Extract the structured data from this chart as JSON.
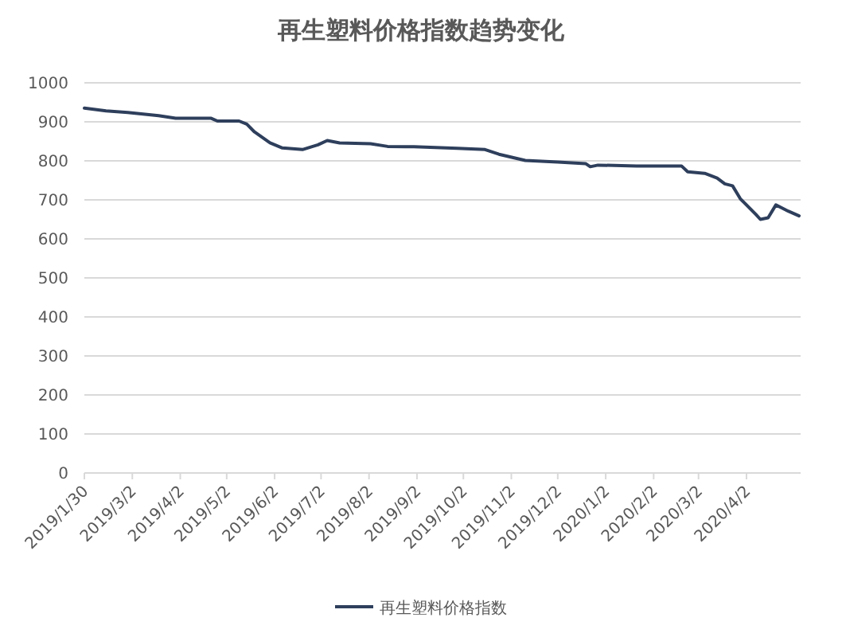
{
  "chart_data": {
    "type": "line",
    "title": "再生塑料价格指数趋势变化",
    "x": [
      "2019-01-30",
      "2019-02-13",
      "2019-02-27",
      "2019-03-19",
      "2019-03-30",
      "2019-04-22",
      "2019-04-26",
      "2019-05-10",
      "2019-05-15",
      "2019-05-20",
      "2019-05-30",
      "2019-06-07",
      "2019-06-20",
      "2019-06-30",
      "2019-07-06",
      "2019-07-14",
      "2019-08-03",
      "2019-08-14",
      "2019-08-31",
      "2019-09-28",
      "2019-10-16",
      "2019-10-25",
      "2019-11-11",
      "2019-12-02",
      "2019-12-20",
      "2019-12-23",
      "2019-12-28",
      "2020-01-22",
      "2020-02-20",
      "2020-02-24",
      "2020-03-06",
      "2020-03-14",
      "2020-03-19",
      "2020-03-24",
      "2020-03-29",
      "2020-04-08",
      "2020-04-11",
      "2020-04-16",
      "2020-04-21",
      "2020-04-25",
      "2020-04-29",
      "2020-05-06"
    ],
    "series": [
      {
        "name": "再生塑料价格指数",
        "color": "#2e3f5c",
        "values": [
          935,
          928,
          924,
          916,
          909,
          909,
          902,
          902,
          894,
          874,
          846,
          833,
          829,
          841,
          852,
          846,
          844,
          837,
          836,
          832,
          829,
          817,
          801,
          797,
          793,
          785,
          789,
          787,
          787,
          772,
          768,
          756,
          741,
          736,
          703,
          663,
          650,
          654,
          687,
          679,
          671,
          659
        ]
      }
    ],
    "xlim": [
      "2019-01-30",
      "2020-05-07"
    ],
    "xticks": [
      {
        "value": "2019-01-30",
        "label": "2019/1/30"
      },
      {
        "value": "2019-03-02",
        "label": "2019/3/2"
      },
      {
        "value": "2019-04-02",
        "label": "2019/4/2"
      },
      {
        "value": "2019-05-02",
        "label": "2019/5/2"
      },
      {
        "value": "2019-06-02",
        "label": "2019/6/2"
      },
      {
        "value": "2019-07-02",
        "label": "2019/7/2"
      },
      {
        "value": "2019-08-02",
        "label": "2019/8/2"
      },
      {
        "value": "2019-09-02",
        "label": "2019/9/2"
      },
      {
        "value": "2019-10-02",
        "label": "2019/10/2"
      },
      {
        "value": "2019-11-02",
        "label": "2019/11/2"
      },
      {
        "value": "2019-12-02",
        "label": "2019/12/2"
      },
      {
        "value": "2020-01-02",
        "label": "2020/1/2"
      },
      {
        "value": "2020-02-02",
        "label": "2020/2/2"
      },
      {
        "value": "2020-03-02",
        "label": "2020/3/2"
      },
      {
        "value": "2020-04-02",
        "label": "2020/4/2"
      }
    ],
    "ylim": [
      0,
      1000
    ],
    "yticks": [
      0,
      100,
      200,
      300,
      400,
      500,
      600,
      700,
      800,
      900,
      1000
    ],
    "grid": "y",
    "legend": "bottom",
    "marker": "none",
    "line_style": "solid"
  }
}
